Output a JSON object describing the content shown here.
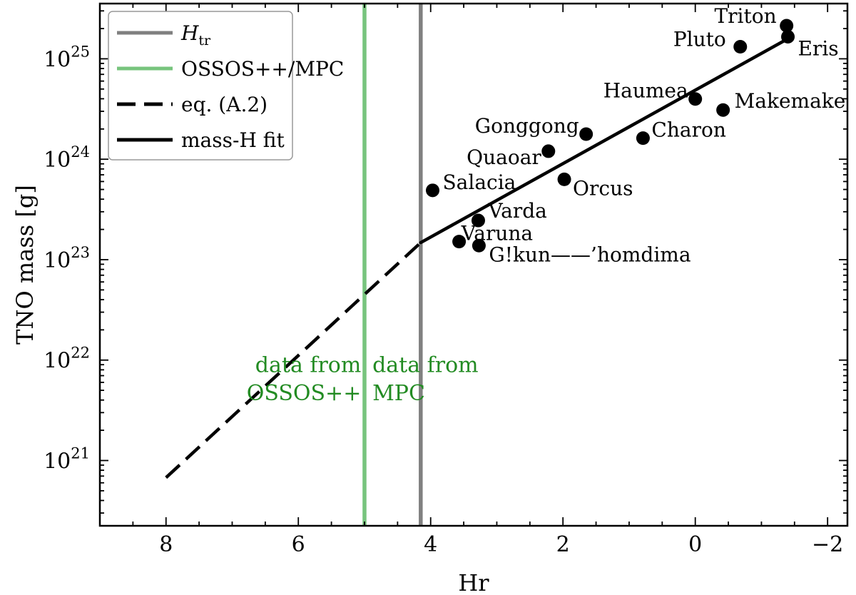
{
  "chart_data": {
    "type": "scatter",
    "xlabel": "Hr",
    "ylabel": "TNO mass [g]",
    "xlim": [
      9.0,
      -2.3
    ],
    "ylim_log10": [
      20.35,
      25.55
    ],
    "y_scale": "log",
    "x_ticks": [
      8,
      6,
      4,
      2,
      0,
      -2
    ],
    "x_tick_labels": [
      "8",
      "6",
      "4",
      "2",
      "0",
      "−2"
    ],
    "y_ticks_log10": [
      21,
      22,
      23,
      24,
      25
    ],
    "y_tick_labels": [
      {
        "base": "10",
        "exp": "21"
      },
      {
        "base": "10",
        "exp": "22"
      },
      {
        "base": "10",
        "exp": "23"
      },
      {
        "base": "10",
        "exp": "24"
      },
      {
        "base": "10",
        "exp": "25"
      }
    ],
    "grid": false,
    "legend_position": "top-left",
    "legend": [
      {
        "label": "H",
        "label_sub": "tr",
        "style": "solid",
        "color": "#808080"
      },
      {
        "label": "OSSOS++/MPC",
        "style": "solid",
        "color": "#77c47d"
      },
      {
        "label": "eq. (A.2)",
        "style": "dashed",
        "color": "#000000"
      },
      {
        "label": "mass-H fit",
        "style": "solid",
        "color": "#000000"
      }
    ],
    "vertical_lines": [
      {
        "x": 4.15,
        "color": "#808080"
      },
      {
        "x": 5.0,
        "color": "#77c47d"
      }
    ],
    "dashed_curve": {
      "x": [
        8.0,
        4.15
      ],
      "y_log10": [
        20.83,
        23.17
      ]
    },
    "fit_line": {
      "x": [
        4.15,
        -1.4
      ],
      "y_log10": [
        23.17,
        25.2
      ]
    },
    "points": [
      {
        "name": "Triton",
        "x": -1.38,
        "y_log10": 25.33
      },
      {
        "name": "Eris",
        "x": -1.4,
        "y_log10": 25.22
      },
      {
        "name": "Pluto",
        "x": -0.68,
        "y_log10": 25.12
      },
      {
        "name": "Haumea",
        "x": 0.0,
        "y_log10": 24.6
      },
      {
        "name": "Makemake",
        "x": -0.42,
        "y_log10": 24.49
      },
      {
        "name": "Charon",
        "x": 0.79,
        "y_log10": 24.21
      },
      {
        "name": "Gonggong",
        "x": 1.65,
        "y_log10": 24.25
      },
      {
        "name": "Quaoar",
        "x": 2.22,
        "y_log10": 24.08
      },
      {
        "name": "Orcus",
        "x": 1.98,
        "y_log10": 23.8
      },
      {
        "name": "Salacia",
        "x": 3.97,
        "y_log10": 23.69
      },
      {
        "name": "Varda",
        "x": 3.28,
        "y_log10": 23.39
      },
      {
        "name": "Varuna",
        "x": 3.57,
        "y_log10": 23.18
      },
      {
        "name": "G!kun——’homdima",
        "x": 3.27,
        "y_log10": 23.14
      }
    ],
    "annotations": [
      {
        "text": "data from",
        "x": 5.05,
        "y_log10": 21.88,
        "anchor": "end",
        "color": "#228b22"
      },
      {
        "text": "OSSOS++",
        "x": 5.05,
        "y_log10": 21.6,
        "anchor": "end",
        "color": "#228b22"
      },
      {
        "text": "data from",
        "x": 4.88,
        "y_log10": 21.88,
        "anchor": "start",
        "color": "#228b22"
      },
      {
        "text": "MPC",
        "x": 4.88,
        "y_log10": 21.6,
        "anchor": "start",
        "color": "#228b22"
      }
    ]
  }
}
